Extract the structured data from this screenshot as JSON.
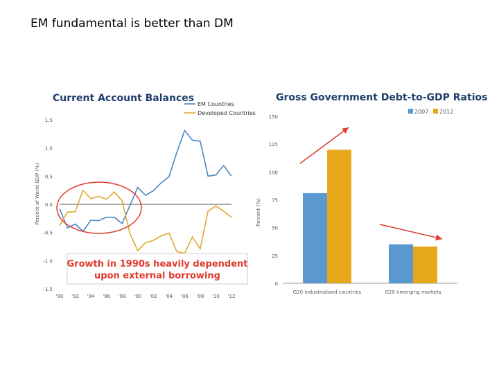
{
  "slide": {
    "title": "EM fundamental is better than DM"
  },
  "chart_data": [
    {
      "type": "line",
      "title": "Current Account Balances",
      "ylabel": "Percent of World GDP (%)",
      "ylim": [
        -1.5,
        1.5
      ],
      "yticks": [
        "1.5",
        "1.0",
        "0.5",
        "0.0",
        "-0.5",
        "-1.0",
        "-1.5"
      ],
      "ytick_values": [
        1.5,
        1.0,
        0.5,
        0.0,
        -0.5,
        -1.0,
        -1.5
      ],
      "xtick_labels": [
        "'90",
        "'92",
        "'94",
        "'96",
        "'98",
        "'00",
        "'02",
        "'04",
        "'06",
        "'08",
        "'10",
        "'12"
      ],
      "x": [
        1990,
        1991,
        1992,
        1993,
        1994,
        1995,
        1996,
        1997,
        1998,
        1999,
        2000,
        2001,
        2002,
        2003,
        2004,
        2005,
        2006,
        2007,
        2008,
        2009,
        2010,
        2011,
        2012
      ],
      "series": [
        {
          "name": "EM Countries",
          "color": "#4a86c5",
          "values": [
            -0.08,
            -0.42,
            -0.35,
            -0.48,
            -0.28,
            -0.29,
            -0.23,
            -0.23,
            -0.34,
            -0.02,
            0.3,
            0.16,
            0.24,
            0.38,
            0.49,
            0.92,
            1.31,
            1.14,
            1.12,
            0.5,
            0.52,
            0.69,
            0.5
          ]
        },
        {
          "name": "Developed Countries",
          "color": "#e0a82e",
          "values": [
            -0.38,
            -0.14,
            -0.13,
            0.25,
            0.1,
            0.14,
            0.09,
            0.22,
            0.06,
            -0.52,
            -0.82,
            -0.68,
            -0.64,
            -0.56,
            -0.51,
            -0.84,
            -0.87,
            -0.58,
            -0.79,
            -0.12,
            -0.03,
            -0.12,
            -0.23
          ]
        }
      ],
      "annotation": "Growth in 1990s heavily dependent upon external borrowing",
      "annotation_color": "#e03a2e",
      "zero_line": true
    },
    {
      "type": "bar",
      "title": "Gross Government Debt-to-GDP Ratios",
      "ylabel": "Percent (%)",
      "ylim": [
        0,
        150
      ],
      "yticks": [
        "150",
        "125",
        "100",
        "75",
        "50",
        "25",
        "0"
      ],
      "ytick_values": [
        150,
        125,
        100,
        75,
        50,
        25,
        0
      ],
      "categories": [
        "G20 industrialized countries",
        "G20 emerging markets"
      ],
      "series": [
        {
          "name": "2007",
          "color": "#5b98cf",
          "values": [
            81,
            35
          ]
        },
        {
          "name": "2012",
          "color": "#e8a81c",
          "values": [
            120,
            33
          ]
        }
      ],
      "arrow_color": "#e03a2e",
      "grid": false
    }
  ]
}
